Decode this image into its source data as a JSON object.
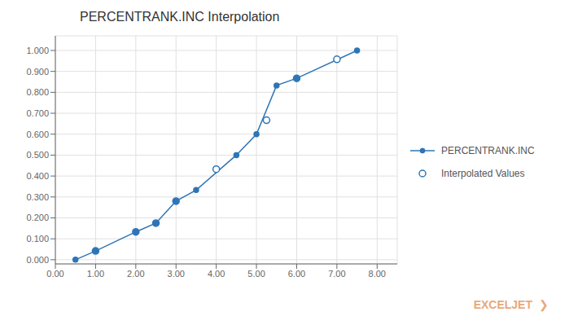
{
  "chart_data": {
    "type": "line",
    "title": "PERCENTRANK.INC Interpolation",
    "series": [
      {
        "name": "PERCENTRANK.INC",
        "type": "line",
        "marker": "circle",
        "color": "#2E75B6",
        "x": [
          0.5,
          1.0,
          2.0,
          2.5,
          3.0,
          3.5,
          4.5,
          5.0,
          5.5,
          6.0,
          7.5
        ],
        "values": [
          0.0,
          0.042,
          0.133,
          0.175,
          0.28,
          0.333,
          0.5,
          0.6,
          0.833,
          0.867,
          1.0
        ]
      },
      {
        "name": "Interpolated Values",
        "type": "scatter",
        "marker": "open_circle",
        "color": "#2E75B6",
        "x": [
          1.0,
          2.0,
          2.5,
          3.0,
          4.0,
          5.25,
          6.0,
          7.0
        ],
        "values": [
          0.042,
          0.133,
          0.175,
          0.28,
          0.433,
          0.667,
          0.867,
          0.958
        ]
      }
    ],
    "xlim": [
      0.0,
      8.5
    ],
    "ylim": [
      -0.02,
      1.07
    ],
    "xticks": [
      {
        "value": 0,
        "label": "0.00"
      },
      {
        "value": 1,
        "label": "1.00"
      },
      {
        "value": 2,
        "label": "2.00"
      },
      {
        "value": 3,
        "label": "3.00"
      },
      {
        "value": 4,
        "label": "4.00"
      },
      {
        "value": 5,
        "label": "5.00"
      },
      {
        "value": 6,
        "label": "6.00"
      },
      {
        "value": 7,
        "label": "7.00"
      },
      {
        "value": 8,
        "label": "8.00"
      }
    ],
    "yticks": [
      {
        "value": 0,
        "label": "0.000"
      },
      {
        "value": 0.1,
        "label": "0.100"
      },
      {
        "value": 0.2,
        "label": "0.200"
      },
      {
        "value": 0.3,
        "label": "0.300"
      },
      {
        "value": 0.4,
        "label": "0.400"
      },
      {
        "value": 0.5,
        "label": "0.500"
      },
      {
        "value": 0.6,
        "label": "0.600"
      },
      {
        "value": 0.7,
        "label": "0.700"
      },
      {
        "value": 0.8,
        "label": "0.800"
      },
      {
        "value": 0.9,
        "label": "0.900"
      },
      {
        "value": 1,
        "label": "1.000"
      }
    ],
    "grid": true,
    "legend": "right",
    "annotations": [
      {
        "text": "EXCELJET",
        "color": "#E8A87C"
      },
      {
        "text": "❯",
        "color": "#E8A87C"
      }
    ]
  }
}
